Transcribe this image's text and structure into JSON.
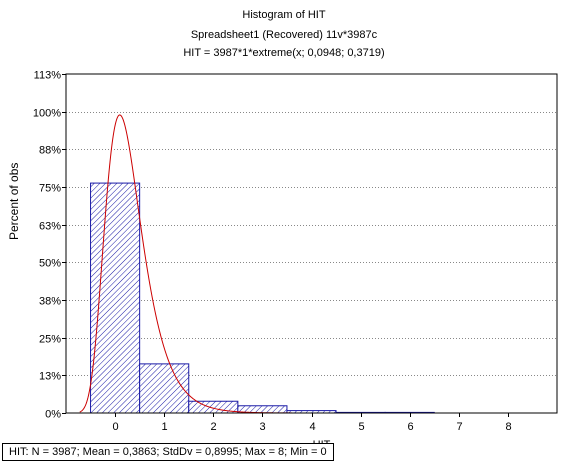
{
  "titles": {
    "line1": "Histogram of HIT",
    "line2": "Spreadsheet1  (Recovered) 11v*3987c",
    "line3": "HIT = 3987*1*extreme(x; 0,0948; 0,3719)"
  },
  "status_bar": {
    "text": "HIT:   N = 3987; Mean = 0,3863; StdDv = 0,8995; Max = 8; Min = 0"
  },
  "chart_data": {
    "type": "bar",
    "title": "Histogram of HIT",
    "ylabel": "Percent of obs",
    "xlabel": "HIT",
    "categories": [
      "0",
      "1",
      "2",
      "3",
      "4",
      "5",
      "6",
      "7",
      "8"
    ],
    "x_ticks": [
      0,
      1,
      2,
      3,
      4,
      5,
      6,
      7,
      8
    ],
    "x_range": [
      -1,
      9
    ],
    "y_ticks": [
      "0%",
      "13%",
      "25%",
      "38%",
      "50%",
      "63%",
      "75%",
      "88%",
      "100%",
      "113%"
    ],
    "y_tick_values": [
      0,
      12.5,
      25,
      37.5,
      50,
      62.5,
      75,
      87.5,
      100,
      112.5
    ],
    "ylim": [
      0,
      112.5
    ],
    "grid": "horizontal dotted",
    "series": [
      {
        "values": [
          76.3,
          16.3,
          3.9,
          2.4,
          0.8,
          0.2,
          0.2,
          0,
          0
        ]
      }
    ],
    "fit_curve": {
      "label": "extreme(x; 0,0948; 0,3719)",
      "location": 0.0948,
      "scale": 0.3719,
      "n": 3987,
      "bin_width": 1,
      "color": "#cc0000"
    },
    "colors": {
      "bar_stroke": "#1a1aa6",
      "bar_hatch": "#1a1aa6",
      "grid": "#888888"
    }
  }
}
